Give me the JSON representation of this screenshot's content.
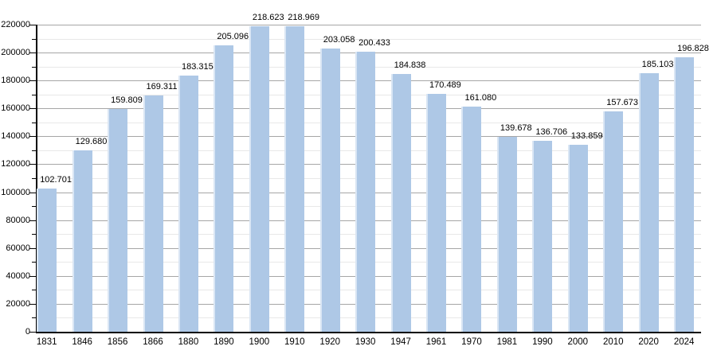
{
  "chart_data": {
    "type": "bar",
    "title": "",
    "xlabel": "",
    "ylabel": "",
    "categories": [
      "1831",
      "1846",
      "1856",
      "1866",
      "1880",
      "1890",
      "1900",
      "1910",
      "1920",
      "1930",
      "1947",
      "1961",
      "1970",
      "1981",
      "1990",
      "2000",
      "2010",
      "2020",
      "2024"
    ],
    "values": [
      102701,
      129680,
      159809,
      169311,
      183315,
      205096,
      218623,
      218969,
      203058,
      200433,
      184838,
      170489,
      161080,
      139678,
      136706,
      133859,
      157673,
      185103,
      196828
    ],
    "value_labels": [
      "102.701",
      "129.680",
      "159.809",
      "169.311",
      "183.315",
      "205.096",
      "218.623",
      "218.969",
      "203.058",
      "200.433",
      "184.838",
      "170.489",
      "161.080",
      "139.678",
      "136.706",
      "133.859",
      "157.673",
      "185.103",
      "196.828"
    ],
    "ylim": [
      0,
      220000
    ],
    "y_major_step": 20000,
    "y_minor_step": 10000,
    "y_tick_labels": [
      "0",
      "20000",
      "40000",
      "60000",
      "80000",
      "100000",
      "120000",
      "140000",
      "160000",
      "180000",
      "200000",
      "220000"
    ],
    "grid": true,
    "legend": null,
    "colors": {
      "bar": "#aec8e6",
      "grid_major": "#a6a6a6",
      "grid_minor": "#e8e8e8",
      "axis": "#000000",
      "text": "#000000",
      "background": "#ffffff"
    }
  }
}
